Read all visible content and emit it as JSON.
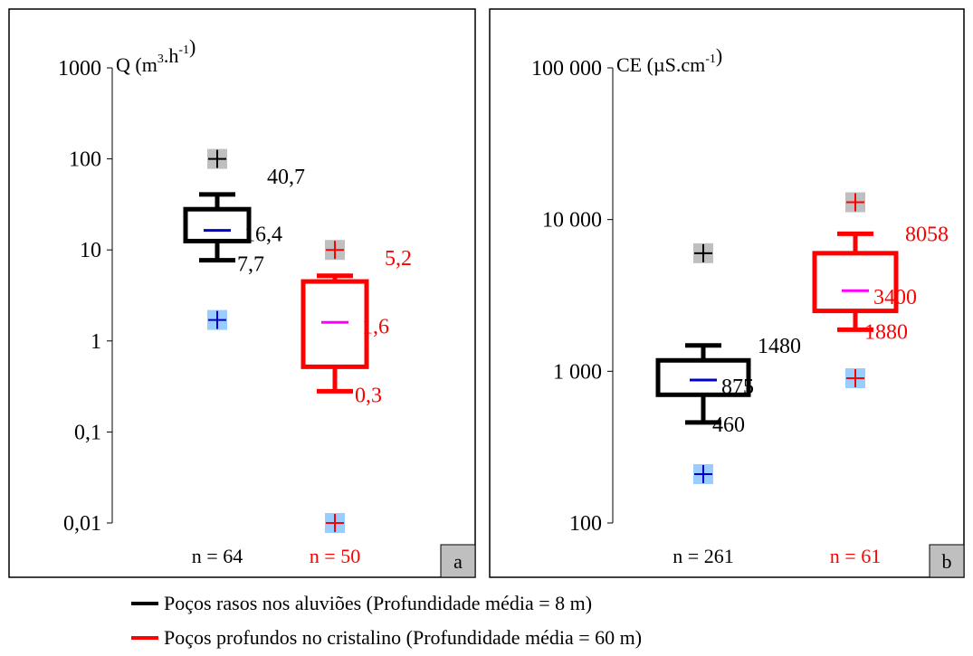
{
  "chart_data": [
    {
      "type": "boxplot",
      "panel_label": "a",
      "ylabel": "Q (m³.h⁻¹)",
      "ylabel_parts": {
        "base": "Q (m",
        "sup1": "3",
        "mid": ".h",
        "sup2": "-1",
        "end": ")"
      },
      "yscale": "log",
      "ylim": [
        0.01,
        1000
      ],
      "yticks": [
        {
          "value": 1000,
          "label": "1000"
        },
        {
          "value": 100,
          "label": "100"
        },
        {
          "value": 10,
          "label": "10"
        },
        {
          "value": 1,
          "label": "1"
        },
        {
          "value": 0.1,
          "label": "0,1"
        },
        {
          "value": 0.01,
          "label": "0,01"
        }
      ],
      "series": [
        {
          "color": "#000000",
          "median_color": "#0000cc",
          "whisker_high": 40.7,
          "q3": 28,
          "median": 16.4,
          "q1": 12.5,
          "whisker_low": 7.7,
          "max": 100,
          "min": 1.7,
          "labels": {
            "high": "40,7",
            "median": "16,4",
            "low": "7,7"
          },
          "n_label": "n = 64"
        },
        {
          "color": "#ff0000",
          "median_color": "#ff00ff",
          "whisker_high": 5.2,
          "q3": 4.5,
          "median": 1.6,
          "q1": 0.52,
          "whisker_low": 0.28,
          "max": 10,
          "min": 0.01,
          "labels": {
            "high": "5,2",
            "median": "1,6",
            "low": "0,3"
          },
          "n_label": "n = 50"
        }
      ]
    },
    {
      "type": "boxplot",
      "panel_label": "b",
      "ylabel": "CE (µS.cm⁻¹)",
      "ylabel_parts": {
        "base": "CE (µS.cm",
        "sup1": "",
        "mid": "",
        "sup2": "-1",
        "end": ")"
      },
      "yscale": "log",
      "ylim": [
        100,
        100000
      ],
      "yticks": [
        {
          "value": 100000,
          "label": "100 000"
        },
        {
          "value": 10000,
          "label": "10 000"
        },
        {
          "value": 1000,
          "label": "1 000"
        },
        {
          "value": 100,
          "label": "100"
        }
      ],
      "series": [
        {
          "color": "#000000",
          "median_color": "#0000cc",
          "whisker_high": 1480,
          "q3": 1180,
          "median": 875,
          "q1": 700,
          "whisker_low": 460,
          "max": 6000,
          "min": 210,
          "labels": {
            "high": "1480",
            "median": "875",
            "low": "460"
          },
          "n_label": "n = 261"
        },
        {
          "color": "#ff0000",
          "median_color": "#ff00ff",
          "whisker_high": 8058,
          "q3": 6000,
          "median": 3400,
          "q1": 2500,
          "whisker_low": 1880,
          "max": 13000,
          "min": 900,
          "labels": {
            "high": "8058",
            "median": "3400",
            "low": "1880"
          },
          "n_label": "n = 61"
        }
      ]
    }
  ],
  "legend": [
    {
      "label": "Poços rasos nos aluviões (Profundidade média = 8 m)",
      "color": "#000000"
    },
    {
      "label": "Poços profundos no cristalino (Profundidade média = 60 m)",
      "color": "#ff0000"
    }
  ],
  "colors": {
    "max_marker_bg": "#bfbfbf",
    "min_marker_bg": "#99ccff",
    "max_marker_black": "#000000",
    "max_marker_red": "#ff0000",
    "min_marker_blue": "#0000cc",
    "min_marker_red": "#ff0000"
  }
}
